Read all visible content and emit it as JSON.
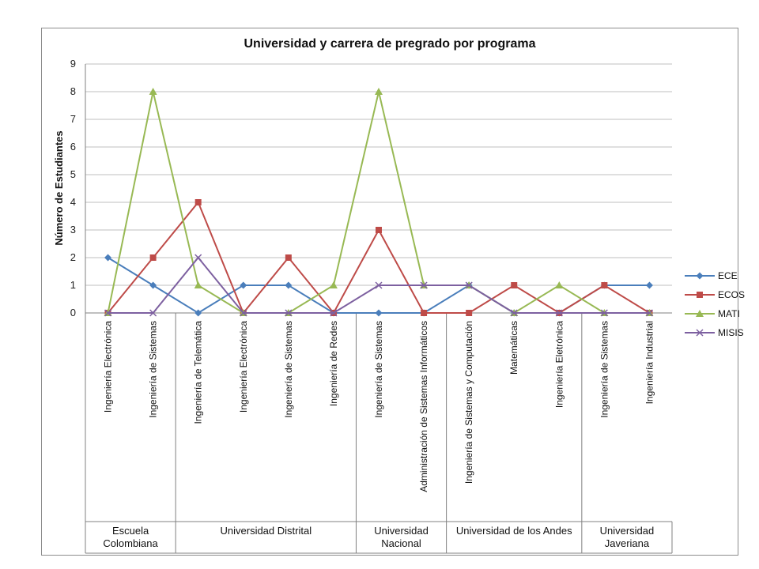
{
  "chart_data": {
    "type": "line",
    "title": "Universidad y carrera de pregrado por programa",
    "xlabel": "",
    "ylabel": "Número  de Estudiantes",
    "ylim": [
      0,
      9
    ],
    "yticks": [
      "0",
      "1",
      "2",
      "3",
      "4",
      "5",
      "6",
      "7",
      "8",
      "9"
    ],
    "grid": true,
    "legend_position": "right",
    "categories": [
      "Ingeniería Electrónica",
      "Ingeniería de Sistemas",
      "Ingeniería de Telemática",
      "Ingeniería Electrónica",
      "Ingeniería de Sistemas",
      "Ingeniería de Redes",
      "Ingeniería de Sistemas",
      "Administración de Sistemas Informáticos",
      "Ingeniería de Sistemas y Computación",
      "Matemáticas",
      "Ingeniería Eletrónica",
      "Ingeniería de Sistemas",
      "Ingeniería Industrial"
    ],
    "groups": [
      {
        "lines": [
          "Escuela",
          "Colombiana"
        ],
        "count": 2
      },
      {
        "lines": [
          "Universidad Distrital"
        ],
        "count": 4
      },
      {
        "lines": [
          "Universidad",
          "Nacional"
        ],
        "count": 2
      },
      {
        "lines": [
          "Universidad de los Andes"
        ],
        "count": 3
      },
      {
        "lines": [
          "Universidad",
          "Javeriana"
        ],
        "count": 2
      }
    ],
    "series": [
      {
        "name": "ECE",
        "color": "#4a7ebb",
        "marker": "diamond",
        "values": [
          2,
          1,
          0,
          1,
          1,
          0,
          0,
          0,
          1,
          0,
          0,
          1,
          1
        ]
      },
      {
        "name": "ECOS",
        "color": "#be4b48",
        "marker": "square",
        "values": [
          0,
          2,
          4,
          0,
          2,
          0,
          3,
          0,
          0,
          1,
          0,
          1,
          0
        ]
      },
      {
        "name": "MATI",
        "color": "#98b954",
        "marker": "triangle",
        "values": [
          0,
          8,
          1,
          0,
          0,
          1,
          8,
          1,
          1,
          0,
          1,
          0,
          0
        ]
      },
      {
        "name": "MISIS",
        "color": "#7d60a0",
        "marker": "x",
        "values": [
          0,
          0,
          2,
          0,
          0,
          0,
          1,
          1,
          1,
          0,
          0,
          0,
          0
        ]
      }
    ]
  }
}
